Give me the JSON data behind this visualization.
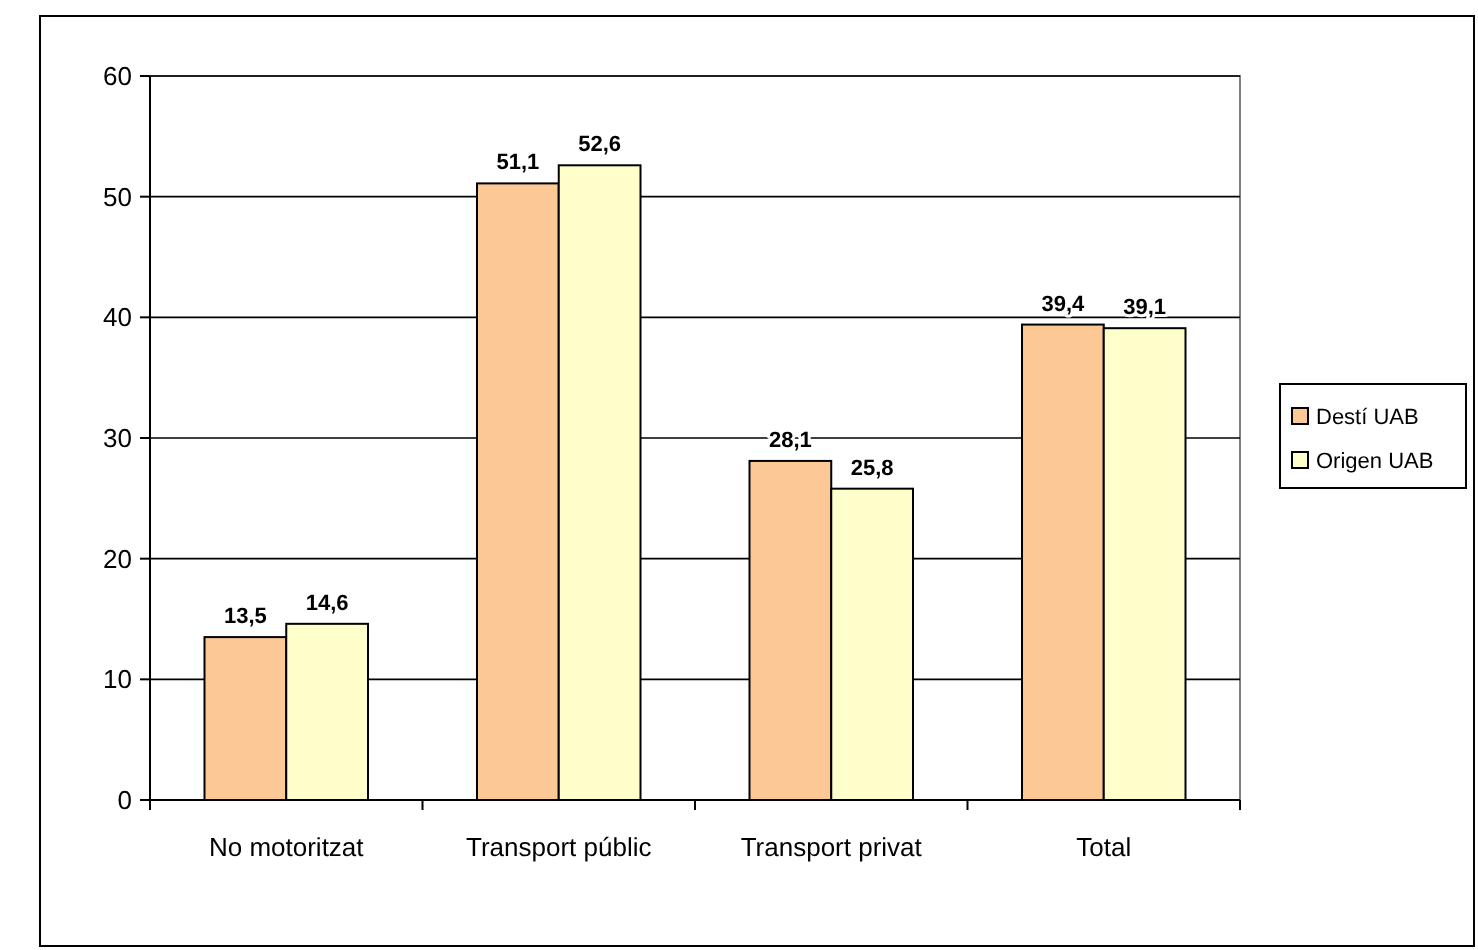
{
  "chart_data": {
    "type": "bar",
    "categories": [
      "No motoritzat",
      "Transport públic",
      "Transport privat",
      "Total"
    ],
    "series": [
      {
        "name": "Destí UAB",
        "color": "#fcc896",
        "values": [
          13.5,
          51.1,
          28.1,
          39.4
        ],
        "value_labels": [
          "13,5",
          "51,1",
          "28,1",
          "39,4"
        ]
      },
      {
        "name": "Origen UAB",
        "color": "#ffffcc",
        "values": [
          14.6,
          52.6,
          25.8,
          39.1
        ],
        "value_labels": [
          "14,6",
          "52,6",
          "25,8",
          "39,1"
        ]
      }
    ],
    "ylim": [
      0,
      60
    ],
    "yticks": [
      0,
      10,
      20,
      30,
      40,
      50,
      60
    ],
    "grid": "y",
    "legend": "right"
  }
}
